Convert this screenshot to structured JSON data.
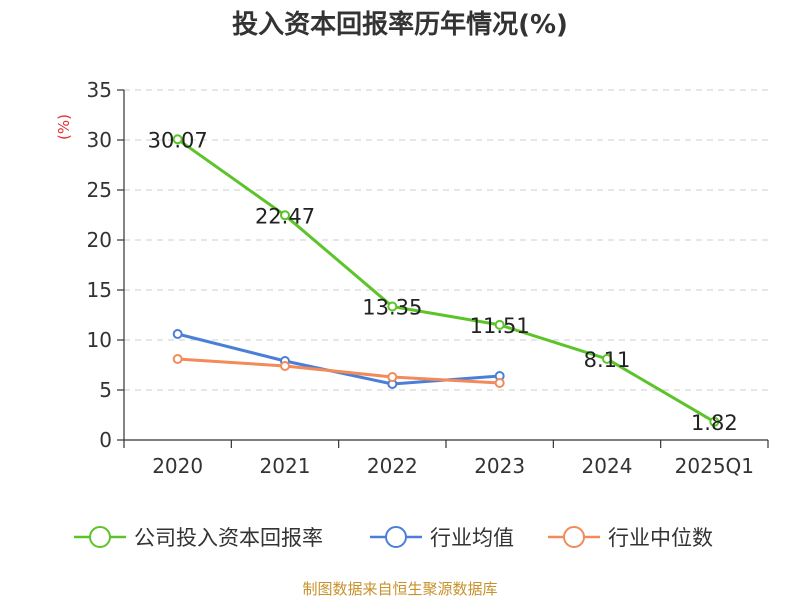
{
  "chart_data": {
    "type": "line",
    "title": "投入资本回报率历年情况(%)",
    "ylabel": "(%)",
    "xlabel": "",
    "categories": [
      "2020",
      "2021",
      "2022",
      "2023",
      "2024",
      "2025Q1"
    ],
    "ylim": [
      0,
      35
    ],
    "yticks": [
      0,
      5,
      10,
      15,
      20,
      25,
      30,
      35
    ],
    "grid": true,
    "legend_position": "bottom",
    "series": [
      {
        "name": "公司投入资本回报率",
        "color": "#5cc42a",
        "values": [
          30.07,
          22.47,
          13.35,
          11.51,
          8.11,
          1.82
        ],
        "labels": [
          "30.07",
          "22.47",
          "13.35",
          "11.51",
          "8.11",
          "1.82"
        ]
      },
      {
        "name": "行业均值",
        "color": "#4a7fd9",
        "values": [
          10.6,
          7.9,
          5.6,
          6.4,
          null,
          null
        ]
      },
      {
        "name": "行业中位数",
        "color": "#f28a5a",
        "values": [
          8.1,
          7.4,
          6.3,
          5.7,
          null,
          null
        ]
      }
    ]
  },
  "source": "制图数据来自恒生聚源数据库"
}
